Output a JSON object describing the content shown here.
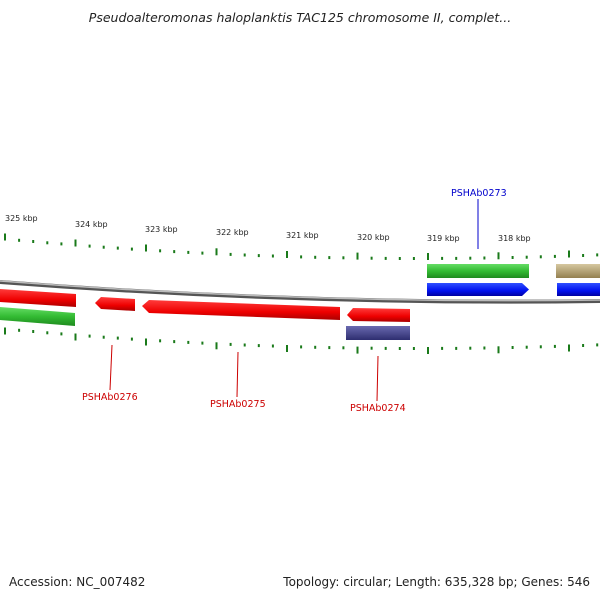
{
  "title": "Pseudoalteromonas haloplanktis TAC125 chromosome II, complet...",
  "footer": {
    "accession": "Accession: NC_007482",
    "info": "Topology: circular; Length: 635,328 bp; Genes: 546"
  },
  "scale": {
    "labels": [
      "325 kbp",
      "324 kbp",
      "323 kbp",
      "322 kbp",
      "321 kbp",
      "320 kbp",
      "319 kbp",
      "318 kbp"
    ]
  },
  "genes": {
    "PSHAb0273": "PSHAb0273",
    "PSHAb0274": "PSHAb0274",
    "PSHAb0275": "PSHAb0275",
    "PSHAb0276": "PSHAb0276"
  },
  "colors": {
    "negative_strand_gene": "#ff0000",
    "positive_strand_gene": "#0000ff",
    "highlighted_label_negative": "#cc0000",
    "highlighted_label_positive": "#0000cc",
    "cds_feature": "#33bb33",
    "tick": "#1a7a1a",
    "backbone": "#888888",
    "other_feature_purple": "#444488",
    "other_feature_olive": "#b0a070"
  }
}
